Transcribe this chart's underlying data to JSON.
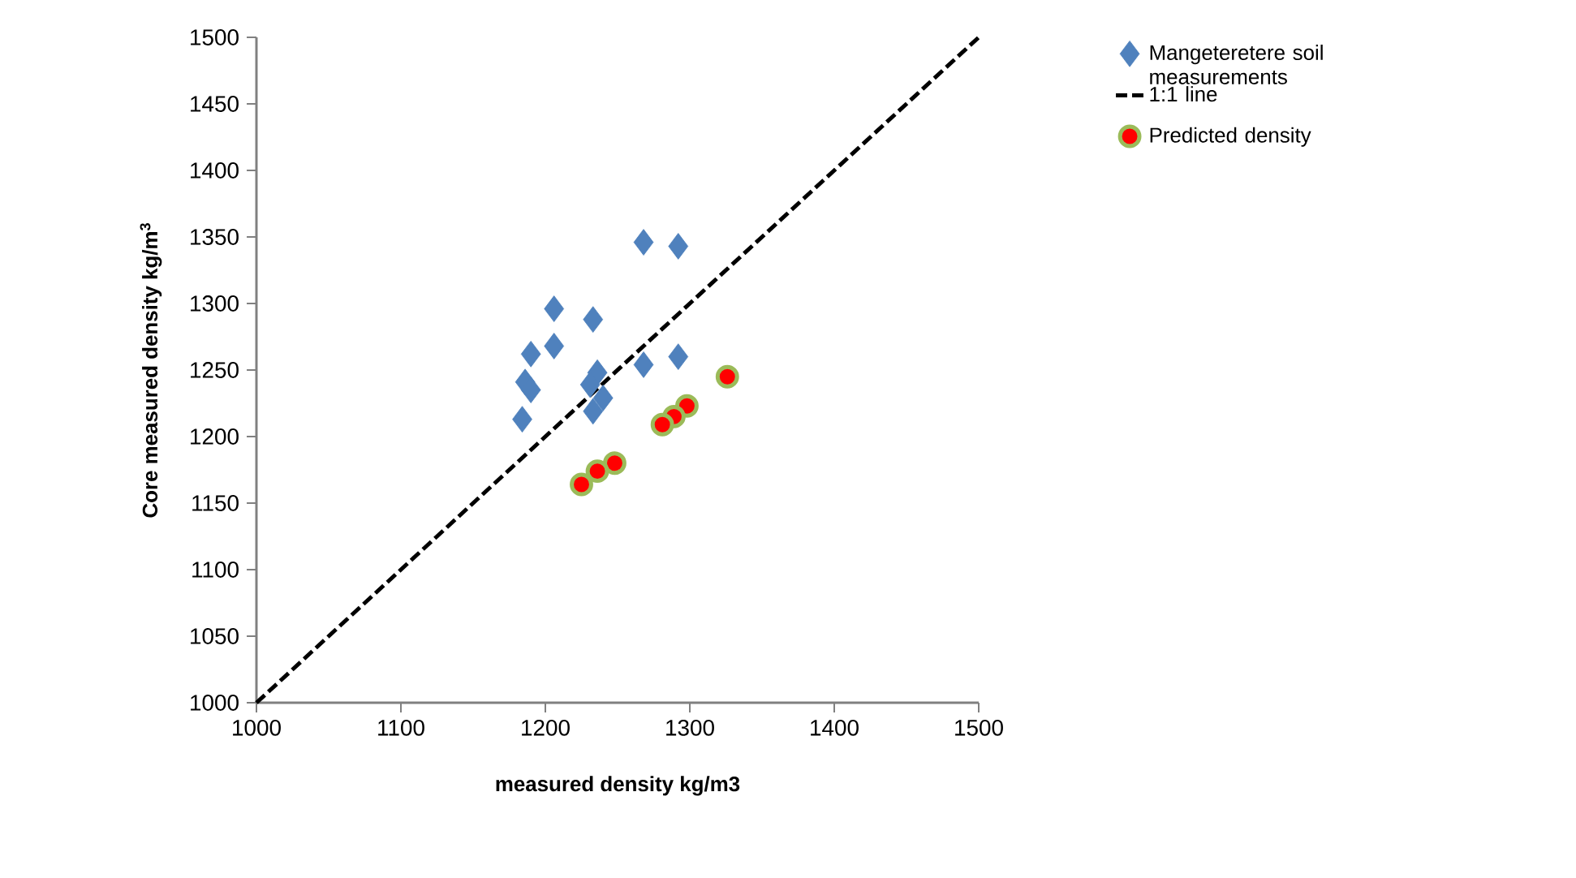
{
  "chart_data": {
    "type": "scatter",
    "xlabel": "measured density kg/m3",
    "ylabel": "Core measured density kg/m$^{3}$",
    "xlim": [
      1000,
      1500
    ],
    "ylim": [
      1000,
      1500
    ],
    "xticks": [
      1000,
      1100,
      1200,
      1300,
      1400,
      1500
    ],
    "yticks": [
      1000,
      1050,
      1100,
      1150,
      1200,
      1250,
      1300,
      1350,
      1400,
      1450,
      1500
    ],
    "grid": false,
    "legend": "right",
    "series": [
      {
        "name": "Mangeteretere soil measurements",
        "marker": "diamond",
        "color": "#4f81bd",
        "x": [
          1268,
          1292,
          1206,
          1233,
          1206,
          1190,
          1292,
          1268,
          1236,
          1186,
          1190,
          1231,
          1240,
          1233,
          1184
        ],
        "values": [
          1346,
          1343,
          1296,
          1288,
          1268,
          1262,
          1260,
          1254,
          1248,
          1241,
          1235,
          1239,
          1229,
          1219,
          1213
        ]
      },
      {
        "name": "1:1 line",
        "type": "line",
        "marker": "none",
        "line_style": "dashed",
        "color": "#000000",
        "x": [
          1000,
          1500
        ],
        "values": [
          1000,
          1500
        ]
      },
      {
        "name": "Predicted density",
        "marker": "circle",
        "color": "#ff0000",
        "x": [
          1326,
          1298,
          1289,
          1281,
          1248,
          1236,
          1225
        ],
        "values": [
          1245,
          1223,
          1215,
          1209,
          1180,
          1174,
          1164
        ]
      }
    ]
  }
}
